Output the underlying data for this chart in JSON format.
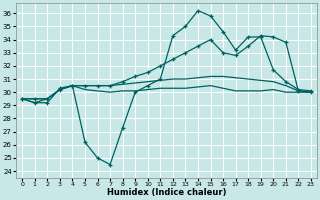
{
  "xlabel": "Humidex (Indice chaleur)",
  "xlim": [
    -0.5,
    23.5
  ],
  "ylim": [
    23.5,
    36.8
  ],
  "yticks": [
    24,
    25,
    26,
    27,
    28,
    29,
    30,
    31,
    32,
    33,
    34,
    35,
    36
  ],
  "xticks": [
    0,
    1,
    2,
    3,
    4,
    5,
    6,
    7,
    8,
    9,
    10,
    11,
    12,
    13,
    14,
    15,
    16,
    17,
    18,
    19,
    20,
    21,
    22,
    23
  ],
  "bg_color": "#c8e8e8",
  "grid_color": "#ffffff",
  "line_color": "#006060",
  "line1": {
    "x": [
      0,
      1,
      2,
      3,
      4,
      5,
      6,
      7,
      8,
      9,
      10,
      11,
      12,
      13,
      14,
      15,
      16,
      17,
      18,
      19,
      20,
      21,
      22,
      23
    ],
    "y": [
      29.5,
      29.2,
      29.2,
      30.3,
      30.5,
      26.2,
      25.0,
      24.5,
      27.3,
      30.0,
      30.5,
      31.0,
      34.3,
      35.0,
      36.2,
      35.8,
      34.6,
      33.2,
      34.2,
      34.2,
      31.7,
      30.8,
      30.2,
      30.1
    ],
    "marker": true
  },
  "line2": {
    "x": [
      0,
      1,
      2,
      3,
      4,
      5,
      6,
      7,
      8,
      9,
      10,
      11,
      12,
      13,
      14,
      15,
      16,
      17,
      18,
      19,
      20,
      21,
      22,
      23
    ],
    "y": [
      29.5,
      29.2,
      29.5,
      30.2,
      30.5,
      30.2,
      30.1,
      30.0,
      30.1,
      30.1,
      30.2,
      30.3,
      30.3,
      30.3,
      30.4,
      30.5,
      30.3,
      30.1,
      30.1,
      30.1,
      30.2,
      30.0,
      30.0,
      30.0
    ],
    "marker": false
  },
  "line3": {
    "x": [
      0,
      1,
      2,
      3,
      4,
      5,
      6,
      7,
      8,
      9,
      10,
      11,
      12,
      13,
      14,
      15,
      16,
      17,
      18,
      19,
      20,
      21,
      22,
      23
    ],
    "y": [
      29.5,
      29.5,
      29.5,
      30.2,
      30.5,
      30.5,
      30.5,
      30.5,
      30.8,
      31.2,
      31.5,
      32.0,
      32.5,
      33.0,
      33.5,
      34.0,
      33.0,
      32.8,
      33.5,
      34.3,
      34.2,
      33.8,
      30.1,
      30.0
    ],
    "marker": true
  },
  "line4": {
    "x": [
      0,
      1,
      2,
      3,
      4,
      5,
      6,
      7,
      8,
      9,
      10,
      11,
      12,
      13,
      14,
      15,
      16,
      17,
      18,
      19,
      20,
      21,
      22,
      23
    ],
    "y": [
      29.5,
      29.5,
      29.5,
      30.2,
      30.5,
      30.5,
      30.5,
      30.5,
      30.6,
      30.7,
      30.8,
      30.9,
      31.0,
      31.0,
      31.1,
      31.2,
      31.2,
      31.1,
      31.0,
      30.9,
      30.8,
      30.5,
      30.1,
      30.0
    ],
    "marker": false
  }
}
